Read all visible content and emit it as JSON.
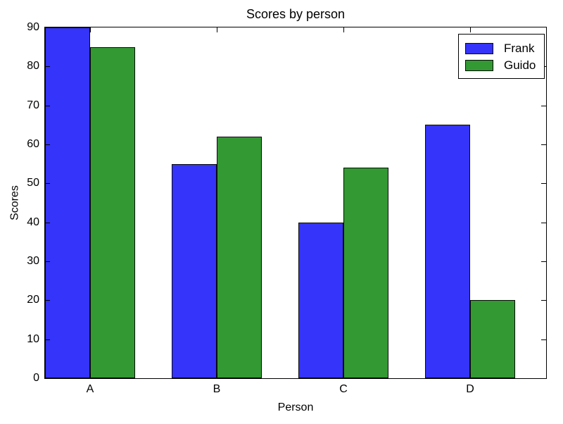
{
  "figure": {
    "title": "Scores by person",
    "xlabel": "Person",
    "ylabel": "Scores"
  },
  "chart_data": {
    "type": "bar",
    "title": "Scores by person",
    "xlabel": "Person",
    "ylabel": "Scores",
    "categories": [
      "A",
      "B",
      "C",
      "D"
    ],
    "series": [
      {
        "name": "Frank",
        "color": "#3434fa",
        "values": [
          90,
          55,
          40,
          65
        ]
      },
      {
        "name": "Guido",
        "color": "#339933",
        "values": [
          85,
          62,
          54,
          20
        ]
      }
    ],
    "ylim": [
      0,
      90
    ],
    "yticks": [
      0,
      10,
      20,
      30,
      40,
      50,
      60,
      70,
      80,
      90
    ],
    "grid": false,
    "legend_position": "upper right",
    "bar_edge_color": "#000000",
    "background_color": "#ffffff"
  }
}
